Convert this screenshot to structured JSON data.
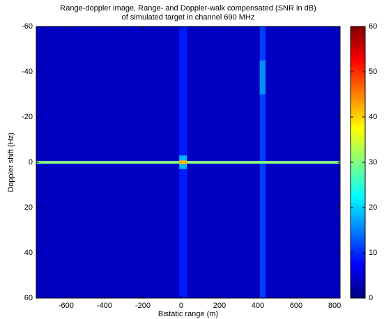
{
  "chart_data": {
    "type": "heatmap",
    "title": [
      "Range-doppler image, Range- and Doppler-walk compensated (SNR in dB)",
      "of simulated target in channel 690 MHz"
    ],
    "xlabel": "Bistatic range (m)",
    "ylabel": "Doppler shift (Hz)",
    "xlim": [
      -756,
      829
    ],
    "xticks": [
      -600,
      -400,
      -200,
      0,
      200,
      400,
      600,
      800
    ],
    "ylim": [
      -60,
      60
    ],
    "yticks": [
      -60,
      -40,
      -20,
      0,
      20,
      40,
      60
    ],
    "y_reversed": true,
    "colormap": "jet",
    "clim": [
      0,
      60
    ],
    "cticks": [
      0,
      10,
      20,
      30,
      40,
      50,
      60
    ],
    "regions": [
      {
        "x": [
          -756,
          829
        ],
        "y": [
          -60,
          60
        ],
        "value": 4
      },
      {
        "x": [
          -10,
          30
        ],
        "y": [
          -60,
          60
        ],
        "value": 9
      },
      {
        "x": [
          410,
          440
        ],
        "y": [
          -60,
          60
        ],
        "value": 11
      },
      {
        "x": [
          410,
          440
        ],
        "y": [
          -45,
          -30
        ],
        "value": 16
      },
      {
        "x": [
          -756,
          829
        ],
        "y": [
          -0.6,
          0.6
        ],
        "value": 30
      },
      {
        "x": [
          -10,
          30
        ],
        "y": [
          -3,
          3
        ],
        "value": 18
      },
      {
        "x": [
          -10,
          30
        ],
        "y": [
          -0.8,
          0.8
        ],
        "value": 42
      }
    ]
  }
}
